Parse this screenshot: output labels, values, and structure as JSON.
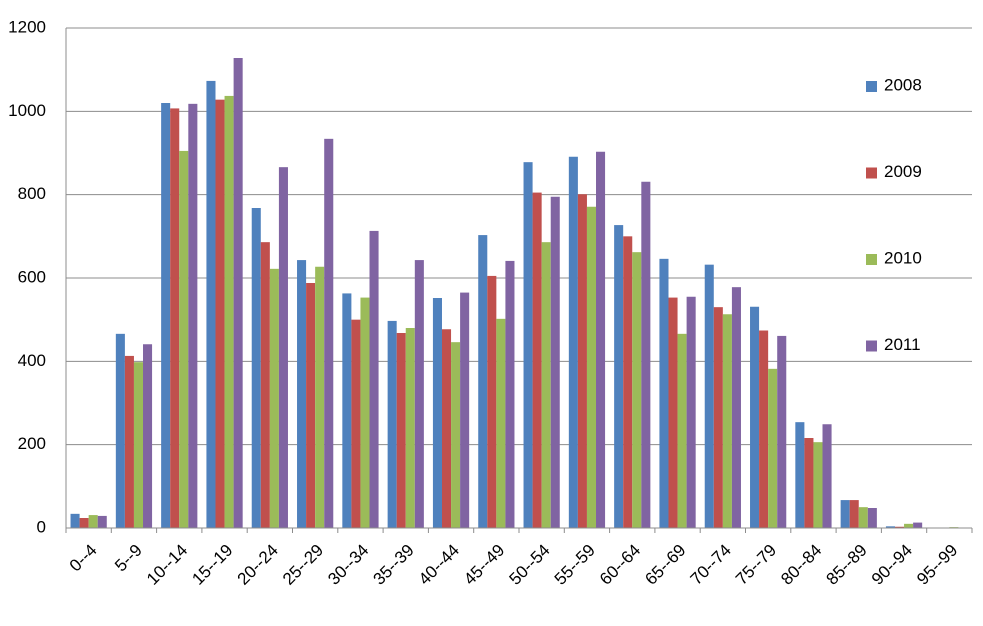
{
  "chart_data": {
    "type": "bar",
    "categories": [
      "0--4",
      "5--9",
      "10--14",
      "15--19",
      "20--24",
      "25--29",
      "30--34",
      "35--39",
      "40--44",
      "45--49",
      "50--54",
      "55--59",
      "60--64",
      "65--69",
      "70--74",
      "75--79",
      "80--84",
      "85--89",
      "90--94",
      "95--99"
    ],
    "series": [
      {
        "name": "2008",
        "color": "#4f81bd",
        "values": [
          34,
          466,
          1020,
          1073,
          768,
          643,
          563,
          497,
          552,
          703,
          878,
          891,
          727,
          646,
          632,
          531,
          254,
          67,
          4,
          1
        ]
      },
      {
        "name": "2009",
        "color": "#c0504d",
        "values": [
          24,
          413,
          1007,
          1028,
          686,
          588,
          500,
          468,
          477,
          605,
          805,
          801,
          700,
          553,
          530,
          474,
          216,
          67,
          3,
          0
        ]
      },
      {
        "name": "2010",
        "color": "#9bbb59",
        "values": [
          31,
          398,
          905,
          1037,
          622,
          627,
          553,
          480,
          446,
          502,
          686,
          771,
          662,
          466,
          513,
          382,
          206,
          50,
          10,
          2
        ]
      },
      {
        "name": "2011",
        "color": "#8064a2",
        "values": [
          29,
          441,
          1018,
          1128,
          866,
          934,
          713,
          643,
          565,
          641,
          795,
          903,
          831,
          555,
          578,
          461,
          249,
          48,
          13,
          0
        ]
      }
    ],
    "ylim": [
      0,
      1200
    ],
    "yticks": [
      0,
      200,
      400,
      600,
      800,
      1000,
      1200
    ],
    "grid": true,
    "legend": "right"
  }
}
